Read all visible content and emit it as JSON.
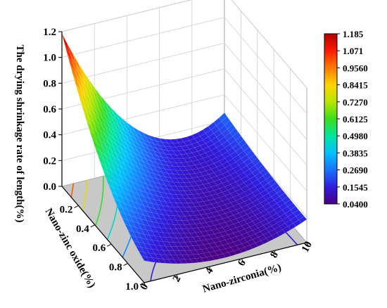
{
  "chart_data": {
    "type": "surface3d",
    "zlabel": "The drying shrinkage rate of length(%)",
    "ylabel": "Nano-zinc oxide(%)",
    "xlabel": "Nano-zirconia(%)",
    "x_ticks": [
      "0",
      "2",
      "4",
      "6",
      "8",
      "10"
    ],
    "y_ticks": [
      "0.2",
      "0.4",
      "0.6",
      "0.8",
      "1.0"
    ],
    "z_ticks": [
      "0.0",
      "0.2",
      "0.4",
      "0.6",
      "0.8",
      "1.0",
      "1.2"
    ],
    "x_range": [
      0,
      10
    ],
    "y_range": [
      0,
      1.0
    ],
    "z_range": [
      0,
      1.2
    ],
    "surface_grid": {
      "x": [
        0,
        5,
        10
      ],
      "y": [
        0,
        0.5,
        1.0
      ],
      "z": [
        [
          1.185,
          0.26,
          0.26
        ],
        [
          0.5,
          0.12,
          0.2
        ],
        [
          0.17,
          0.04,
          0.18
        ]
      ]
    },
    "colorbar": {
      "ticks": [
        "1.185",
        "1.071",
        "0.9560",
        "0.8415",
        "0.7270",
        "0.6125",
        "0.4980",
        "0.3835",
        "0.2690",
        "0.1545",
        "0.0400"
      ],
      "min": 0.04,
      "max": 1.185,
      "colors": [
        "#4b0082",
        "#2f1de0",
        "#1a72ff",
        "#00c0ff",
        "#00e6a0",
        "#3ddc1a",
        "#b8e600",
        "#ffd400",
        "#ff7a00",
        "#ff1a00",
        "#b00000"
      ]
    },
    "floor_contours": true,
    "grid": true
  }
}
